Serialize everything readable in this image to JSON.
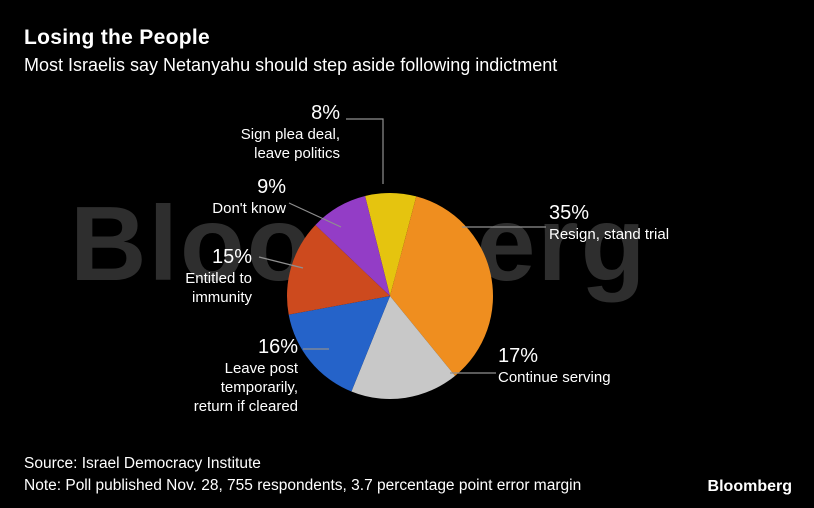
{
  "header": {
    "title": "Losing the People",
    "subtitle": "Most Israelis say Netanyahu should step aside following indictment"
  },
  "watermark": "Bloomberg",
  "chart_data": {
    "type": "pie",
    "title": "Losing the People",
    "subtitle": "Most Israelis say Netanyahu should step aside following indictment",
    "unit": "%",
    "start_angle_deg": -14,
    "slices": [
      {
        "label": "Sign plea deal, leave politics",
        "value": 8,
        "color": "#e5c40f"
      },
      {
        "label": "Resign, stand trial",
        "value": 35,
        "color": "#ef8e1f"
      },
      {
        "label": "Continue serving",
        "value": 17,
        "color": "#c8c8c8"
      },
      {
        "label": "Leave post temporarily, return if cleared",
        "value": 16,
        "color": "#2563c9"
      },
      {
        "label": "Entitled to immunity",
        "value": 15,
        "color": "#cd4a1e"
      },
      {
        "label": "Don't know",
        "value": 9,
        "color": "#933dc6"
      }
    ]
  },
  "labels": {
    "plea": {
      "pct": "8%",
      "line1": "Sign plea deal,",
      "line2": "leave politics"
    },
    "dontknow": {
      "pct": "9%",
      "line1": "Don't know"
    },
    "immunity": {
      "pct": "15%",
      "line1": "Entitled to",
      "line2": "immunity"
    },
    "leavepost": {
      "pct": "16%",
      "line1": "Leave post",
      "line2": "temporarily,",
      "line3": "return if cleared"
    },
    "resign": {
      "pct": "35%",
      "line1": "Resign, stand trial"
    },
    "continue": {
      "pct": "17%",
      "line1": "Continue serving"
    }
  },
  "footer": {
    "source": "Source: Israel Democracy Institute",
    "note": "Note: Poll published Nov. 28, 755 respondents, 3.7 percentage point error margin",
    "logo": "Bloomberg"
  }
}
